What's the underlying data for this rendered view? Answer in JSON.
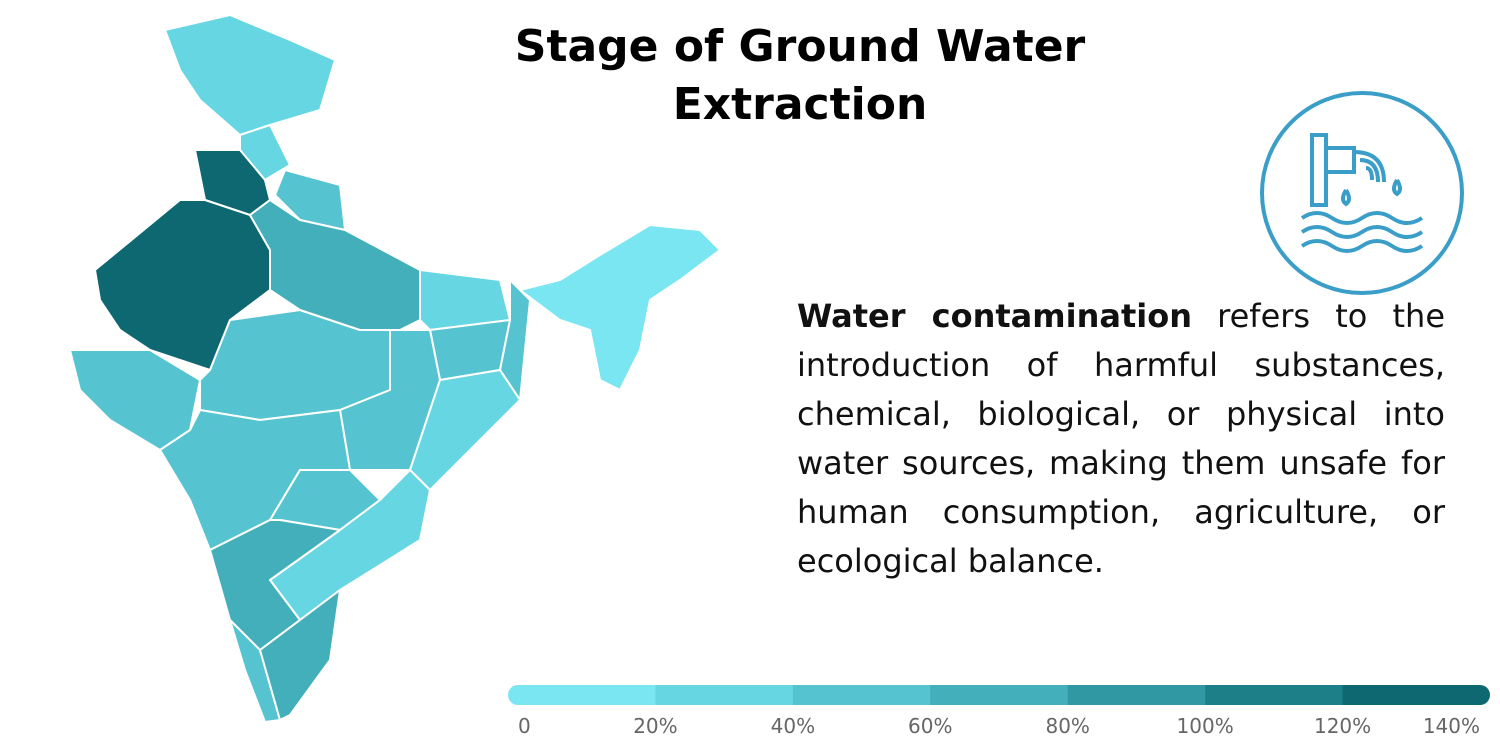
{
  "header": {
    "title": "Stage of Ground Water Extraction"
  },
  "paragraph": {
    "bold": "Water contamination",
    "text": "refers to the introduction of harmful substances, chemical, biological, or physical into water sources, making them unsafe for human consumption, agriculture, or ecological balance."
  },
  "legend": {
    "lim": [
      0,
      140
    ],
    "ticks": [
      0,
      {
        "value": 20,
        "label": "20%"
      },
      {
        "value": 40,
        "label": "40%"
      },
      {
        "value": 60,
        "label": "60%"
      },
      {
        "value": 80,
        "label": "80%"
      },
      {
        "value": 100,
        "label": "100%"
      },
      {
        "value": 120,
        "label": "120%"
      },
      {
        "value": 140,
        "label": "140%"
      }
    ],
    "colors": [
      "#7ae6f2",
      "#66d6e3",
      "#55c4d0",
      "#43afba",
      "#2f98a2",
      "#1d8089",
      "#0e6871"
    ]
  }
}
